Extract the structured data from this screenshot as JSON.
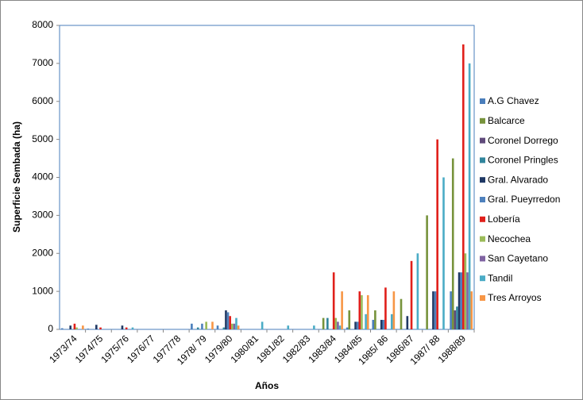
{
  "chart_data": {
    "type": "bar",
    "x_label": "Años",
    "y_label": "Superficie Sembada (ha)",
    "categories": [
      "1973/74",
      "1974/75",
      "1975/76",
      "1976/77",
      "1977/78",
      "1978/ 79",
      "1979/80",
      "1980/81",
      "1981/82",
      "1982/83",
      "1983/84",
      "1984/85",
      "1985/ 86",
      "1986/87",
      "1987/ 88",
      "1988/89"
    ],
    "ylim": [
      0,
      8000
    ],
    "yticks": [
      0,
      1000,
      2000,
      3000,
      4000,
      5000,
      6000,
      7000,
      8000
    ],
    "grid": false,
    "legend": "right",
    "series": [
      {
        "name": "A.G Chavez",
        "color": "#4a7ebb",
        "values": [
          30,
          20,
          0,
          0,
          0,
          150,
          100,
          0,
          0,
          0,
          0,
          50,
          250,
          0,
          0,
          1000
        ]
      },
      {
        "name": "Balcarce",
        "color": "#77933c",
        "values": [
          0,
          0,
          0,
          0,
          0,
          0,
          0,
          0,
          0,
          0,
          300,
          500,
          500,
          800,
          3000,
          4500
        ]
      },
      {
        "name": "Coronel Dorrego",
        "color": "#604a7b",
        "values": [
          0,
          0,
          0,
          0,
          0,
          0,
          0,
          0,
          0,
          0,
          0,
          0,
          0,
          0,
          0,
          500
        ]
      },
      {
        "name": "Coronel Pringles",
        "color": "#31859c",
        "values": [
          0,
          0,
          0,
          0,
          0,
          50,
          50,
          0,
          0,
          0,
          300,
          0,
          0,
          0,
          0,
          600
        ]
      },
      {
        "name": "Gral. Alvarado",
        "color": "#1f3864",
        "values": [
          100,
          120,
          100,
          0,
          0,
          0,
          500,
          0,
          0,
          0,
          0,
          200,
          250,
          350,
          1000,
          1500
        ]
      },
      {
        "name": "Gral. Pueyrredon",
        "color": "#4f81bd",
        "values": [
          0,
          0,
          0,
          0,
          0,
          150,
          450,
          0,
          0,
          0,
          0,
          200,
          250,
          0,
          1000,
          1500
        ]
      },
      {
        "name": "Lobería",
        "color": "#e0201b",
        "values": [
          150,
          50,
          50,
          0,
          0,
          0,
          350,
          0,
          0,
          0,
          1500,
          1000,
          1100,
          1800,
          5000,
          7500
        ]
      },
      {
        "name": "Necochea",
        "color": "#9bbb59",
        "values": [
          50,
          0,
          0,
          0,
          0,
          200,
          150,
          0,
          0,
          0,
          300,
          900,
          0,
          0,
          0,
          2000
        ]
      },
      {
        "name": "San Cayetano",
        "color": "#8064a2",
        "values": [
          0,
          0,
          0,
          0,
          0,
          0,
          150,
          0,
          0,
          0,
          200,
          0,
          0,
          0,
          0,
          1500
        ]
      },
      {
        "name": "Tandil",
        "color": "#4bacc6",
        "values": [
          0,
          0,
          50,
          0,
          0,
          0,
          300,
          200,
          100,
          100,
          100,
          400,
          400,
          2000,
          4000,
          7000
        ]
      },
      {
        "name": "Tres Arroyos",
        "color": "#f79646",
        "values": [
          100,
          0,
          0,
          0,
          0,
          200,
          100,
          0,
          0,
          0,
          1000,
          900,
          1000,
          0,
          0,
          1000
        ]
      }
    ]
  }
}
